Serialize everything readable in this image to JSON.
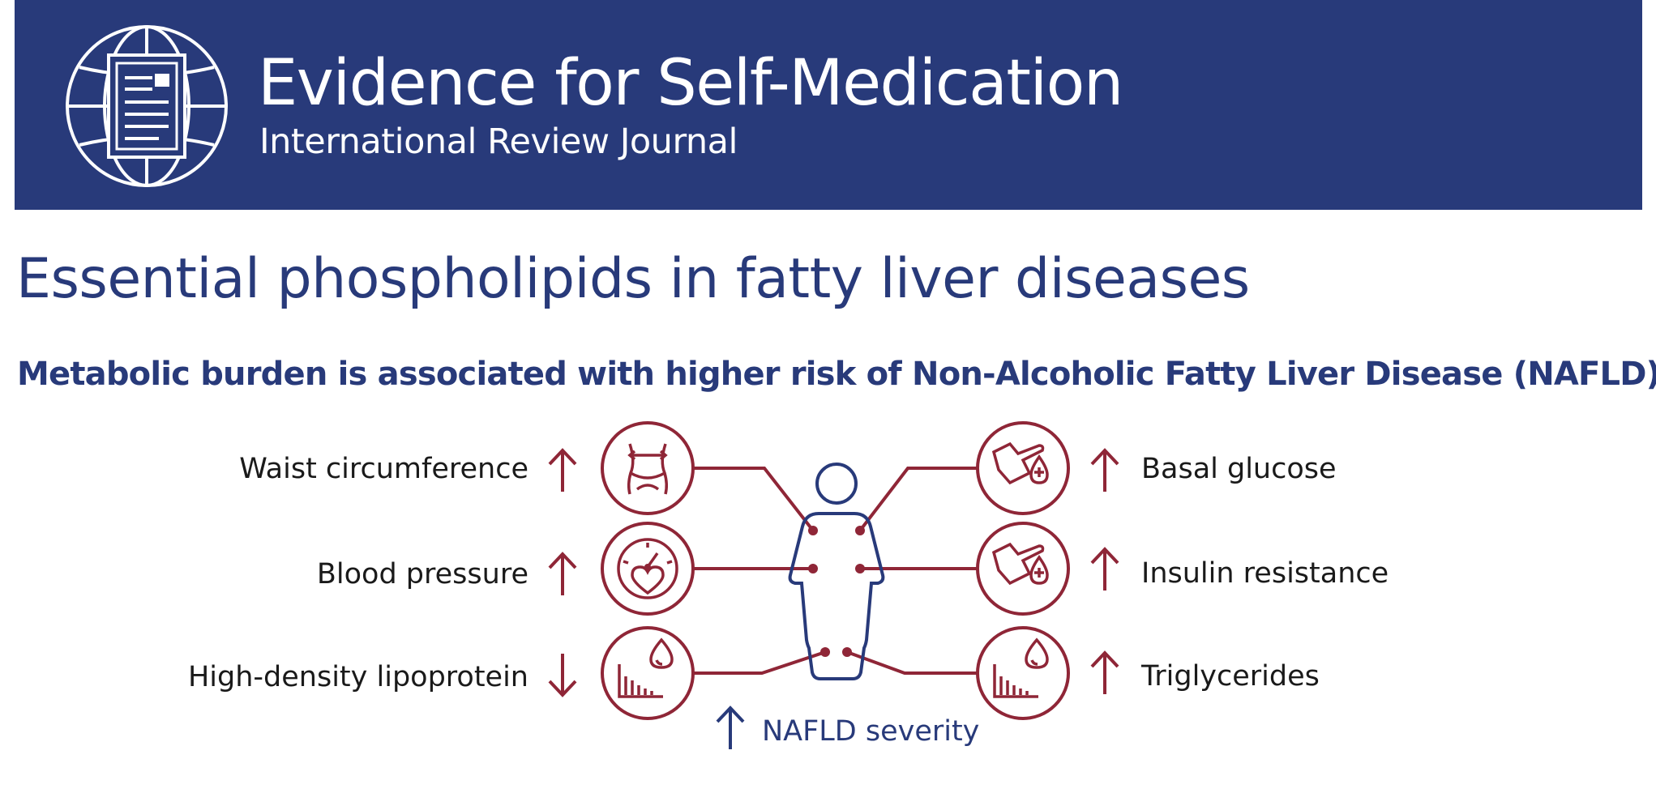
{
  "header": {
    "journal_title": "Evidence for Self-Medication",
    "journal_subtitle": "International Review Journal",
    "logo_icon": "globe-document-icon"
  },
  "title": "Essential phospholipids in fatty liver diseases",
  "subheading": "Metabolic burden is associated with higher risk of Non-Alcoholic Fatty Liver Disease (NAFLD)",
  "colors": {
    "header_bg": "#283a7a",
    "primary_blue": "#283a7a",
    "risk_red": "#8f2637",
    "text": "#1a1a1a"
  },
  "diagram": {
    "left_factors": [
      {
        "label": "Waist circumference",
        "trend": "up",
        "icon": "waist-measure-icon"
      },
      {
        "label": "Blood pressure",
        "trend": "up",
        "icon": "heart-gauge-icon"
      },
      {
        "label": "High-density lipoprotein",
        "trend": "down",
        "icon": "blood-drop-chart-icon"
      }
    ],
    "right_factors": [
      {
        "label": "Basal glucose",
        "trend": "up",
        "icon": "finger-prick-glucose-icon"
      },
      {
        "label": "Insulin resistance",
        "trend": "up",
        "icon": "finger-prick-glucose-icon"
      },
      {
        "label": "Triglycerides",
        "trend": "up",
        "icon": "blood-drop-chart-icon"
      }
    ],
    "outcome": {
      "label": "NAFLD severity",
      "trend": "up"
    },
    "center_icon": "human-figure-icon"
  }
}
